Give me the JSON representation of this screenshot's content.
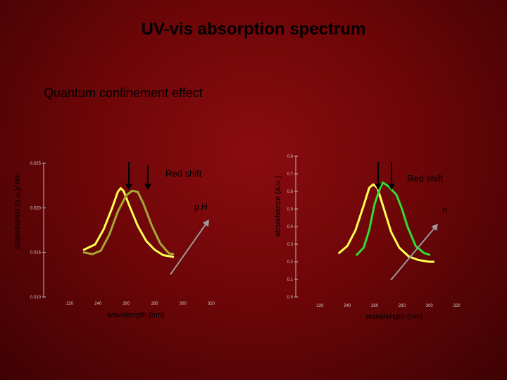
{
  "slide": {
    "title": "UV-vis absorption spectrum",
    "subtitle": "Quantum confinement effect"
  },
  "colors": {
    "background": "#7a0a0c",
    "curve_yellow": "#ffff55",
    "curve_olive": "#a8a838",
    "curve_green": "#33dd33",
    "arrow": "#9a9a9a"
  },
  "chart_data": [
    {
      "type": "line",
      "ylabel": "absorbance (a.u.)/ nm",
      "xlabel": "wavelength (nm)",
      "xlim": [
        210,
        330
      ],
      "ylim": [
        0.01,
        0.025
      ],
      "xticks": [
        "220",
        "240",
        "260",
        "280",
        "300",
        "320"
      ],
      "yticks": [
        "0.025",
        "0.020",
        "0.015",
        "0.010"
      ],
      "annotations": {
        "shift": "Red shift",
        "param": "p.H"
      },
      "series": [
        {
          "color": "#ffff55",
          "points": [
            [
              230,
              0.0153
            ],
            [
              238,
              0.0159
            ],
            [
              244,
              0.0176
            ],
            [
              250,
              0.02
            ],
            [
              254,
              0.0218
            ],
            [
              256,
              0.0222
            ],
            [
              258,
              0.0219
            ],
            [
              262,
              0.0203
            ],
            [
              268,
              0.018
            ],
            [
              274,
              0.0163
            ],
            [
              280,
              0.0153
            ],
            [
              286,
              0.0147
            ],
            [
              293,
              0.0145
            ]
          ]
        },
        {
          "color": "#a8a838",
          "points": [
            [
              230,
              0.015
            ],
            [
              236,
              0.0148
            ],
            [
              242,
              0.0152
            ],
            [
              248,
              0.017
            ],
            [
              254,
              0.0196
            ],
            [
              260,
              0.0214
            ],
            [
              264,
              0.0219
            ],
            [
              268,
              0.0218
            ],
            [
              272,
              0.0205
            ],
            [
              278,
              0.018
            ],
            [
              284,
              0.016
            ],
            [
              290,
              0.0149
            ],
            [
              293,
              0.0148
            ]
          ]
        }
      ]
    },
    {
      "type": "line",
      "ylabel": "absorbance (a.u.)",
      "xlabel": "wavelength (nm)",
      "xlim": [
        210,
        330
      ],
      "ylim": [
        0.0,
        0.8
      ],
      "xticks": [
        "220",
        "240",
        "260",
        "280",
        "300",
        "320"
      ],
      "yticks": [
        "0.8",
        "0.7",
        "0.6",
        "0.5",
        "0.4",
        "0.3",
        "0.2",
        "0.1",
        "0.0"
      ],
      "annotations": {
        "shift": "Red shift",
        "param": "n"
      },
      "series": [
        {
          "color": "#ffff55",
          "points": [
            [
              234,
              0.25
            ],
            [
              240,
              0.29
            ],
            [
              246,
              0.38
            ],
            [
              252,
              0.52
            ],
            [
              256,
              0.62
            ],
            [
              259,
              0.64
            ],
            [
              262,
              0.62
            ],
            [
              266,
              0.52
            ],
            [
              272,
              0.37
            ],
            [
              278,
              0.28
            ],
            [
              285,
              0.23
            ],
            [
              292,
              0.21
            ],
            [
              300,
              0.2
            ],
            [
              303,
              0.2
            ]
          ]
        },
        {
          "color": "#33dd33",
          "points": [
            [
              247,
              0.24
            ],
            [
              252,
              0.28
            ],
            [
              256,
              0.38
            ],
            [
              260,
              0.53
            ],
            [
              264,
              0.62
            ],
            [
              266,
              0.65
            ],
            [
              270,
              0.63
            ],
            [
              276,
              0.58
            ],
            [
              280,
              0.5
            ],
            [
              284,
              0.4
            ],
            [
              290,
              0.29
            ],
            [
              296,
              0.25
            ],
            [
              300,
              0.24
            ]
          ]
        }
      ]
    }
  ]
}
